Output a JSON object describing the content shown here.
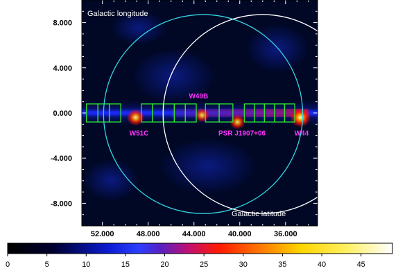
{
  "chart_data": {
    "type": "heatmap",
    "title": "",
    "colormap": "heat",
    "xlabel": "Galactic latitude",
    "ylabel": "Galactic longitude",
    "x_ticks": [
      "52.000",
      "48.000",
      "44.000",
      "40.000",
      "36.000"
    ],
    "x_tick_values": [
      52,
      48,
      44,
      40,
      36
    ],
    "y_ticks": [
      "8.000",
      "4.000",
      "0.000",
      "-4.000",
      "-8.000"
    ],
    "y_tick_values": [
      8,
      4,
      0,
      -4,
      -8
    ],
    "xlim": [
      53.8,
      33.2
    ],
    "ylim": [
      -10,
      10
    ],
    "colorbar": {
      "min": 0,
      "max": 49,
      "ticks": [
        "0",
        "5",
        "10",
        "15",
        "20",
        "25",
        "30",
        "35",
        "40",
        "45"
      ],
      "tick_values": [
        0,
        5,
        10,
        15,
        20,
        25,
        30,
        35,
        40,
        45
      ]
    },
    "band": {
      "lat": 0.0,
      "width": 1.0
    },
    "sources": [
      {
        "label": "W51C",
        "l": 49.1,
        "b": -0.4,
        "intensity": 0.75
      },
      {
        "label": "W49B",
        "l": 43.3,
        "b": -0.2,
        "intensity": 0.55
      },
      {
        "label": "PSR J1907+06",
        "l": 40.2,
        "b": -0.8,
        "intensity": 0.6
      },
      {
        "label": "W44",
        "l": 34.7,
        "b": -0.4,
        "intensity": 1.0
      }
    ],
    "labels": [
      {
        "text": "W51C",
        "l": 48.8,
        "b": -2.0
      },
      {
        "text": "W49B",
        "l": 43.6,
        "b": 1.3
      },
      {
        "text": "PSR J1907+06",
        "l": 39.8,
        "b": -2.0
      },
      {
        "text": "W44",
        "l": 34.6,
        "b": -2.0
      }
    ],
    "circles": [
      {
        "l": 43.2,
        "b": -0.1,
        "r_deg": 3.0,
        "color": "#33d6e0"
      },
      {
        "l": 38.0,
        "b": -0.1,
        "r_deg": 3.0,
        "color": "#ffffff"
      }
    ],
    "box_rows": [
      {
        "l_start": 53.4,
        "l_end": 50.4,
        "n": 3
      },
      {
        "l_start": 48.6,
        "l_end": 43.8,
        "n": 5
      },
      {
        "l_start": 43.0,
        "l_end": 40.6,
        "n": 2
      },
      {
        "l_start": 40.6,
        "l_end": 40.2,
        "n": 0
      },
      {
        "l_start": 39.6,
        "l_end": 35.2,
        "n": 5
      }
    ],
    "box_lat": [
      -0.8,
      0.8
    ],
    "box_color": "#2ee62e",
    "label_color": "#ff33ff"
  }
}
